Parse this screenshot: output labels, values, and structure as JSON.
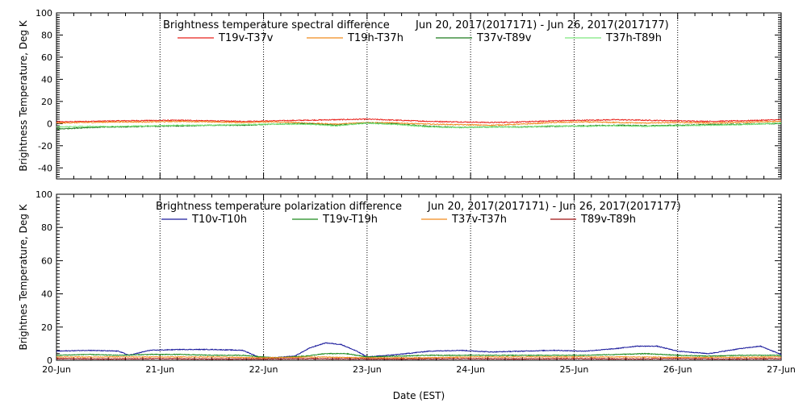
{
  "chart_data": [
    {
      "type": "line",
      "title": "Brightness temperature spectral difference",
      "date_range": "Jun 20, 2017(2017171) - Jun 26, 2017(2017177)",
      "xlabel": "",
      "ylabel": "Brightness Temperature, Deg K",
      "ylim": [
        -50,
        100
      ],
      "yticks": [
        "-40",
        "-20",
        "0",
        "20",
        "40",
        "60",
        "80",
        "100"
      ],
      "xlim": [
        0,
        7
      ],
      "grid": "vertical-dotted",
      "legend": "top",
      "series": [
        {
          "name": "T19v-T37v",
          "color": "#e8201a",
          "x": [
            0,
            0.3,
            0.6,
            0.9,
            1.2,
            1.5,
            1.8,
            2.1,
            2.4,
            2.7,
            3.0,
            3.3,
            3.6,
            3.9,
            4.2,
            4.5,
            4.8,
            5.1,
            5.4,
            5.7,
            6.0,
            6.3,
            6.6,
            7.0
          ],
          "y": [
            1.5,
            2.0,
            2.5,
            2.8,
            3.0,
            2.5,
            2.0,
            2.5,
            3.0,
            3.5,
            4.0,
            3.0,
            2.0,
            1.5,
            1.0,
            1.5,
            2.5,
            3.0,
            3.5,
            3.0,
            2.5,
            2.0,
            2.5,
            3.5
          ]
        },
        {
          "name": "T19h-T37h",
          "color": "#f08a1c",
          "x": [
            0,
            0.3,
            0.6,
            0.9,
            1.2,
            1.5,
            1.8,
            2.1,
            2.4,
            2.7,
            3.0,
            3.3,
            3.6,
            3.9,
            4.2,
            4.5,
            4.8,
            5.1,
            5.4,
            5.7,
            6.0,
            6.3,
            6.6,
            7.0
          ],
          "y": [
            0.5,
            1.0,
            1.5,
            1.5,
            2.0,
            1.5,
            1.0,
            1.5,
            0.5,
            -0.5,
            1.0,
            0.5,
            -0.5,
            -1.0,
            -1.5,
            -0.5,
            1.0,
            1.5,
            1.0,
            0.5,
            1.0,
            0.5,
            1.0,
            2.0
          ]
        },
        {
          "name": "T37v-T89v",
          "color": "#1c7a1c",
          "x": [
            0,
            0.3,
            0.6,
            0.9,
            1.2,
            1.5,
            1.8,
            2.1,
            2.4,
            2.7,
            3.0,
            3.3,
            3.6,
            3.9,
            4.2,
            4.5,
            4.8,
            5.1,
            5.4,
            5.7,
            6.0,
            6.3,
            6.6,
            7.0
          ],
          "y": [
            -5.0,
            -3.5,
            -3.0,
            -2.5,
            -2.0,
            -1.5,
            -1.5,
            -0.5,
            0.0,
            -1.5,
            0.5,
            -0.5,
            -2.5,
            -3.5,
            -3.0,
            -3.0,
            -2.5,
            -2.0,
            -1.5,
            -2.0,
            -1.5,
            -1.0,
            -0.5,
            0.0
          ]
        },
        {
          "name": "T37h-T89h",
          "color": "#7ee87e",
          "x": [
            0,
            0.3,
            0.6,
            0.9,
            1.2,
            1.5,
            1.8,
            2.1,
            2.4,
            2.7,
            3.0,
            3.3,
            3.6,
            3.9,
            4.2,
            4.5,
            4.8,
            5.1,
            5.4,
            5.7,
            6.0,
            6.3,
            6.6,
            7.0
          ],
          "y": [
            -3.0,
            -2.5,
            -2.5,
            -2.0,
            -1.5,
            -1.5,
            -1.0,
            -0.5,
            -0.5,
            -2.0,
            0.5,
            -1.0,
            -3.0,
            -3.5,
            -3.0,
            -3.0,
            -2.0,
            -2.5,
            -2.0,
            -2.5,
            -2.0,
            -1.5,
            -1.0,
            0.5
          ]
        }
      ]
    },
    {
      "type": "line",
      "title": "Brightness temperature polarization difference",
      "date_range": "Jun 20, 2017(2017171) - Jun 26, 2017(2017177)",
      "xlabel": "Date (EST)",
      "ylabel": "Brightnes Temperature, Deg K",
      "ylim": [
        0,
        100
      ],
      "yticks": [
        "0",
        "20",
        "40",
        "60",
        "80",
        "100"
      ],
      "xlim": [
        0,
        7
      ],
      "xticks": [
        "20-Jun",
        "21-Jun",
        "22-Jun",
        "23-Jun",
        "24-Jun",
        "25-Jun",
        "26-Jun",
        "27-Jun"
      ],
      "grid": "vertical-dotted",
      "legend": "top",
      "series": [
        {
          "name": "T10v-T10h",
          "color": "#1a1a9c",
          "x": [
            0,
            0.3,
            0.6,
            0.7,
            0.9,
            1.2,
            1.5,
            1.8,
            1.95,
            2.1,
            2.3,
            2.45,
            2.6,
            2.75,
            2.9,
            3.0,
            3.3,
            3.6,
            3.9,
            4.2,
            4.5,
            4.8,
            5.1,
            5.4,
            5.6,
            5.8,
            6.0,
            6.3,
            6.6,
            6.8,
            7.0
          ],
          "y": [
            5.5,
            6.0,
            5.5,
            3.0,
            6.0,
            6.5,
            6.5,
            6.0,
            2.0,
            1.5,
            2.5,
            7.5,
            10.5,
            9.5,
            5.5,
            2.0,
            3.5,
            5.5,
            6.0,
            5.0,
            5.5,
            6.0,
            5.5,
            7.0,
            8.5,
            8.5,
            5.5,
            4.0,
            7.0,
            8.5,
            3.5
          ]
        },
        {
          "name": "T19v-T19h",
          "color": "#1c8a1c",
          "x": [
            0,
            0.3,
            0.6,
            0.9,
            1.2,
            1.5,
            1.8,
            2.1,
            2.4,
            2.6,
            2.8,
            3.0,
            3.3,
            3.6,
            3.9,
            4.2,
            4.5,
            4.8,
            5.1,
            5.4,
            5.7,
            6.0,
            6.3,
            6.6,
            7.0
          ],
          "y": [
            3.0,
            3.5,
            3.0,
            3.5,
            3.5,
            3.0,
            3.0,
            1.5,
            2.5,
            4.0,
            4.0,
            2.0,
            2.5,
            3.0,
            3.0,
            3.0,
            3.0,
            3.0,
            3.0,
            3.5,
            4.0,
            3.0,
            2.5,
            3.0,
            3.0
          ]
        },
        {
          "name": "T37v-T37h",
          "color": "#f08a1c",
          "x": [
            0,
            0.5,
            1.0,
            1.5,
            2.0,
            2.5,
            3.0,
            3.5,
            4.0,
            4.5,
            5.0,
            5.5,
            6.0,
            6.5,
            7.0
          ],
          "y": [
            2.0,
            2.0,
            2.0,
            2.0,
            1.5,
            2.0,
            1.5,
            1.5,
            2.0,
            2.0,
            2.0,
            2.0,
            1.8,
            1.8,
            2.0
          ]
        },
        {
          "name": "T89v-T89h",
          "color": "#a01010",
          "x": [
            0,
            0.5,
            1.0,
            1.5,
            2.0,
            2.5,
            3.0,
            3.5,
            4.0,
            4.5,
            5.0,
            5.5,
            6.0,
            6.5,
            7.0
          ],
          "y": [
            1.0,
            0.8,
            1.0,
            0.8,
            0.8,
            1.0,
            0.8,
            0.8,
            1.0,
            0.8,
            1.0,
            0.8,
            1.0,
            0.8,
            1.0
          ]
        }
      ]
    }
  ]
}
